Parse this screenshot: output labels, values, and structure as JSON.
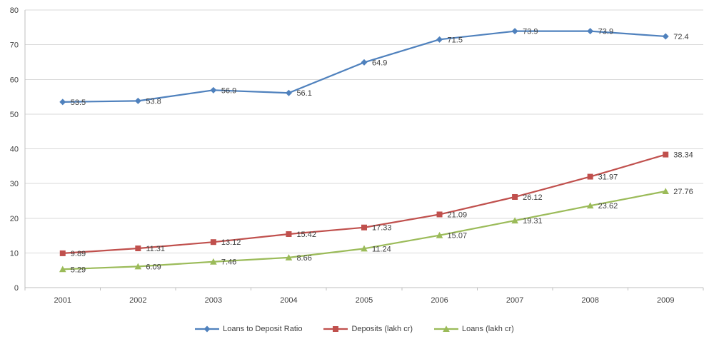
{
  "chart_data": {
    "type": "line",
    "title": "",
    "xlabel": "",
    "ylabel": "",
    "categories": [
      "2001",
      "2002",
      "2003",
      "2004",
      "2005",
      "2006",
      "2007",
      "2008",
      "2009"
    ],
    "series": [
      {
        "name": "Loans to Deposit Ratio",
        "color": "#4F81BD",
        "marker": "diamond",
        "values": [
          53.5,
          53.8,
          56.9,
          56.1,
          64.9,
          71.5,
          73.9,
          73.9,
          72.4
        ]
      },
      {
        "name": "Deposits (lakh cr)",
        "color": "#C0504D",
        "marker": "square",
        "values": [
          9.89,
          11.31,
          13.12,
          15.42,
          17.33,
          21.09,
          26.12,
          31.97,
          38.34
        ]
      },
      {
        "name": "Loans (lakh cr)",
        "color": "#9BBB59",
        "marker": "triangle",
        "values": [
          5.29,
          6.09,
          7.46,
          8.66,
          11.24,
          15.07,
          19.31,
          23.62,
          27.76
        ]
      }
    ],
    "ylim": [
      0,
      80
    ],
    "ytick_step": 10,
    "grid": true,
    "show_data_labels": true,
    "legend_position": "bottom",
    "grid_color": "#D9D9D9",
    "axis_color": "#BFBFBF",
    "label_color": "#3F3F3F"
  }
}
